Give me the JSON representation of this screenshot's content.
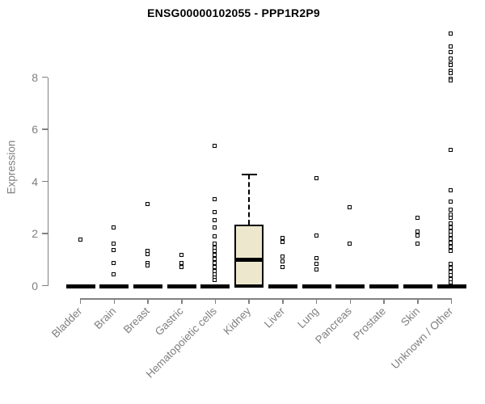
{
  "title": "ENSG00000102055 - PPP1R2P9",
  "chart_data": {
    "type": "boxplot",
    "title": "ENSG00000102055 - PPP1R2P9",
    "xlabel": "",
    "ylabel": "Expression",
    "ylim": [
      0,
      9.7
    ],
    "yticks": [
      0,
      2,
      4,
      6,
      8
    ],
    "grid": false,
    "legend": "none",
    "axis_color": "#808080",
    "box_fill": "#EDE8CD",
    "point_style": "open-square",
    "categories": [
      "Bladder",
      "Brain",
      "Breast",
      "Gastric",
      "Hematopoietic cells",
      "Kidney",
      "Liver",
      "Lung",
      "Pancreas",
      "Prostate",
      "Skin",
      "Unknown / Other"
    ],
    "groups": [
      {
        "label": "Bladder",
        "box": {
          "q1": 0,
          "median": 0,
          "q3": 0,
          "whisker_low": 0,
          "whisker_high": 0
        },
        "points": [
          1.75
        ]
      },
      {
        "label": "Brain",
        "box": {
          "q1": 0,
          "median": 0,
          "q3": 0,
          "whisker_low": 0,
          "whisker_high": 0
        },
        "points": [
          2.2,
          1.6,
          1.35,
          0.85,
          0.42
        ]
      },
      {
        "label": "Breast",
        "box": {
          "q1": 0,
          "median": 0,
          "q3": 0,
          "whisker_low": 0,
          "whisker_high": 0
        },
        "points": [
          3.1,
          1.3,
          1.2,
          0.85,
          0.75
        ]
      },
      {
        "label": "Gastric",
        "box": {
          "q1": 0,
          "median": 0,
          "q3": 0,
          "whisker_low": 0,
          "whisker_high": 0
        },
        "points": [
          1.15,
          0.85,
          0.68
        ]
      },
      {
        "label": "Hematopoietic cells",
        "box": {
          "q1": 0,
          "median": 0,
          "q3": 0,
          "whisker_low": 0,
          "whisker_high": 0
        },
        "points": [
          5.35,
          3.3,
          2.8,
          2.5,
          2.2,
          1.87,
          1.6,
          1.45,
          1.3,
          1.15,
          1.0,
          0.85,
          0.7,
          0.55,
          0.42,
          0.3,
          0.2
        ]
      },
      {
        "label": "Kidney",
        "box": {
          "q1": 0,
          "median": 1.0,
          "q3": 2.33,
          "whisker_low": 0,
          "whisker_high": 4.25
        },
        "points": []
      },
      {
        "label": "Liver",
        "box": {
          "q1": 0,
          "median": 0,
          "q3": 0,
          "whisker_low": 0,
          "whisker_high": 0
        },
        "points": [
          1.8,
          1.65,
          1.1,
          0.9,
          0.7
        ]
      },
      {
        "label": "Lung",
        "box": {
          "q1": 0,
          "median": 0,
          "q3": 0,
          "whisker_low": 0,
          "whisker_high": 0
        },
        "points": [
          4.1,
          1.9,
          1.05,
          0.83,
          0.6
        ]
      },
      {
        "label": "Pancreas",
        "box": {
          "q1": 0,
          "median": 0,
          "q3": 0,
          "whisker_low": 0,
          "whisker_high": 0
        },
        "points": [
          3.0,
          1.6
        ]
      },
      {
        "label": "Prostate",
        "box": {
          "q1": 0,
          "median": 0,
          "q3": 0,
          "whisker_low": 0,
          "whisker_high": 0
        },
        "points": []
      },
      {
        "label": "Skin",
        "box": {
          "q1": 0,
          "median": 0,
          "q3": 0,
          "whisker_low": 0,
          "whisker_high": 0
        },
        "points": [
          2.6,
          2.05,
          1.9,
          1.6
        ]
      },
      {
        "label": "Unknown / Other",
        "box": {
          "q1": 0,
          "median": 0,
          "q3": 0,
          "whisker_low": 0,
          "whisker_high": 0
        },
        "points": [
          9.65,
          9.15,
          8.95,
          8.7,
          8.52,
          8.45,
          8.22,
          8.15,
          7.92,
          7.85,
          5.2,
          3.65,
          3.2,
          2.9,
          2.72,
          2.6,
          2.37,
          2.22,
          2.07,
          1.92,
          1.77,
          1.62,
          1.47,
          1.32,
          0.82,
          0.67,
          0.52,
          0.37,
          0.22,
          0.1
        ]
      }
    ]
  }
}
